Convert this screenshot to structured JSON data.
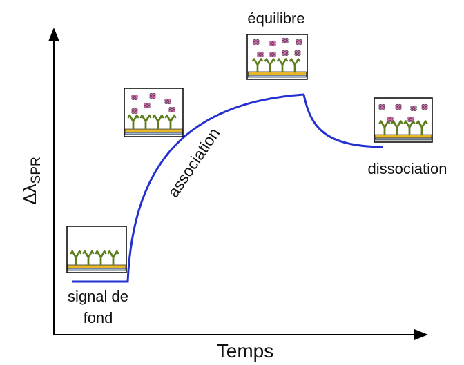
{
  "axes": {
    "x_label": "Temps",
    "y_label": "Δλ",
    "y_label_sub": "SPR"
  },
  "phases": {
    "background": [
      "signal de",
      "fond"
    ],
    "association": "association",
    "equilibrium": "équilibre",
    "dissociation": "dissociation"
  }
}
